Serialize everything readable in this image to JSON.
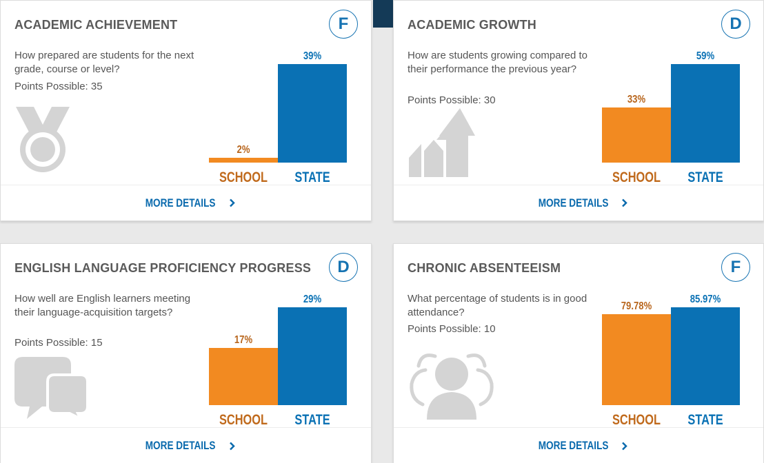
{
  "colors": {
    "school": "#f28a21",
    "state": "#0a71b4",
    "icon": "#d4d4d4",
    "grade": "#1673b2"
  },
  "cards": [
    {
      "title": "ACADEMIC ACHIEVEMENT",
      "grade": "F",
      "question": "How prepared are students for the next grade, course or level?",
      "points": "Points Possible: 35",
      "icon": "medal-icon",
      "school_label": "SCHOOL",
      "state_label": "STATE",
      "school_value": "2%",
      "state_value": "39%",
      "more": "MORE DETAILS"
    },
    {
      "title": "ACADEMIC GROWTH",
      "grade": "D",
      "question": "How are students growing compared to their performance the previous year?",
      "points": "Points Possible: 30",
      "icon": "growth-arrows-icon",
      "school_label": "SCHOOL",
      "state_label": "STATE",
      "school_value": "33%",
      "state_value": "59%",
      "more": "MORE DETAILS"
    },
    {
      "title": "ENGLISH LANGUAGE PROFICIENCY PROGRESS",
      "grade": "D",
      "question": "How well are English learners meeting their language-acquisition targets?",
      "points": "Points Possible: 15",
      "icon": "chat-bubbles-icon",
      "school_label": "SCHOOL",
      "state_label": "STATE",
      "school_value": "17%",
      "state_value": "29%",
      "more": "MORE DETAILS"
    },
    {
      "title": "CHRONIC ABSENTEEISM",
      "grade": "F",
      "question": "What percentage of students is in good attendance?",
      "points": "Points Possible: 10",
      "icon": "people-icon",
      "school_label": "SCHOOL",
      "state_label": "STATE",
      "school_value": "79.78%",
      "state_value": "85.97%",
      "more": "MORE DETAILS"
    }
  ],
  "chart_data": [
    {
      "type": "bar",
      "title": "ACADEMIC ACHIEVEMENT",
      "categories": [
        "SCHOOL",
        "STATE"
      ],
      "values": [
        2,
        39
      ],
      "ylim": [
        0,
        39
      ]
    },
    {
      "type": "bar",
      "title": "ACADEMIC GROWTH",
      "categories": [
        "SCHOOL",
        "STATE"
      ],
      "values": [
        33,
        59
      ],
      "ylim": [
        0,
        59
      ]
    },
    {
      "type": "bar",
      "title": "ENGLISH LANGUAGE PROFICIENCY PROGRESS",
      "categories": [
        "SCHOOL",
        "STATE"
      ],
      "values": [
        17,
        29
      ],
      "ylim": [
        0,
        29
      ]
    },
    {
      "type": "bar",
      "title": "CHRONIC ABSENTEEISM",
      "categories": [
        "SCHOOL",
        "STATE"
      ],
      "values": [
        79.78,
        85.97
      ],
      "ylim": [
        0,
        85.97
      ]
    }
  ]
}
